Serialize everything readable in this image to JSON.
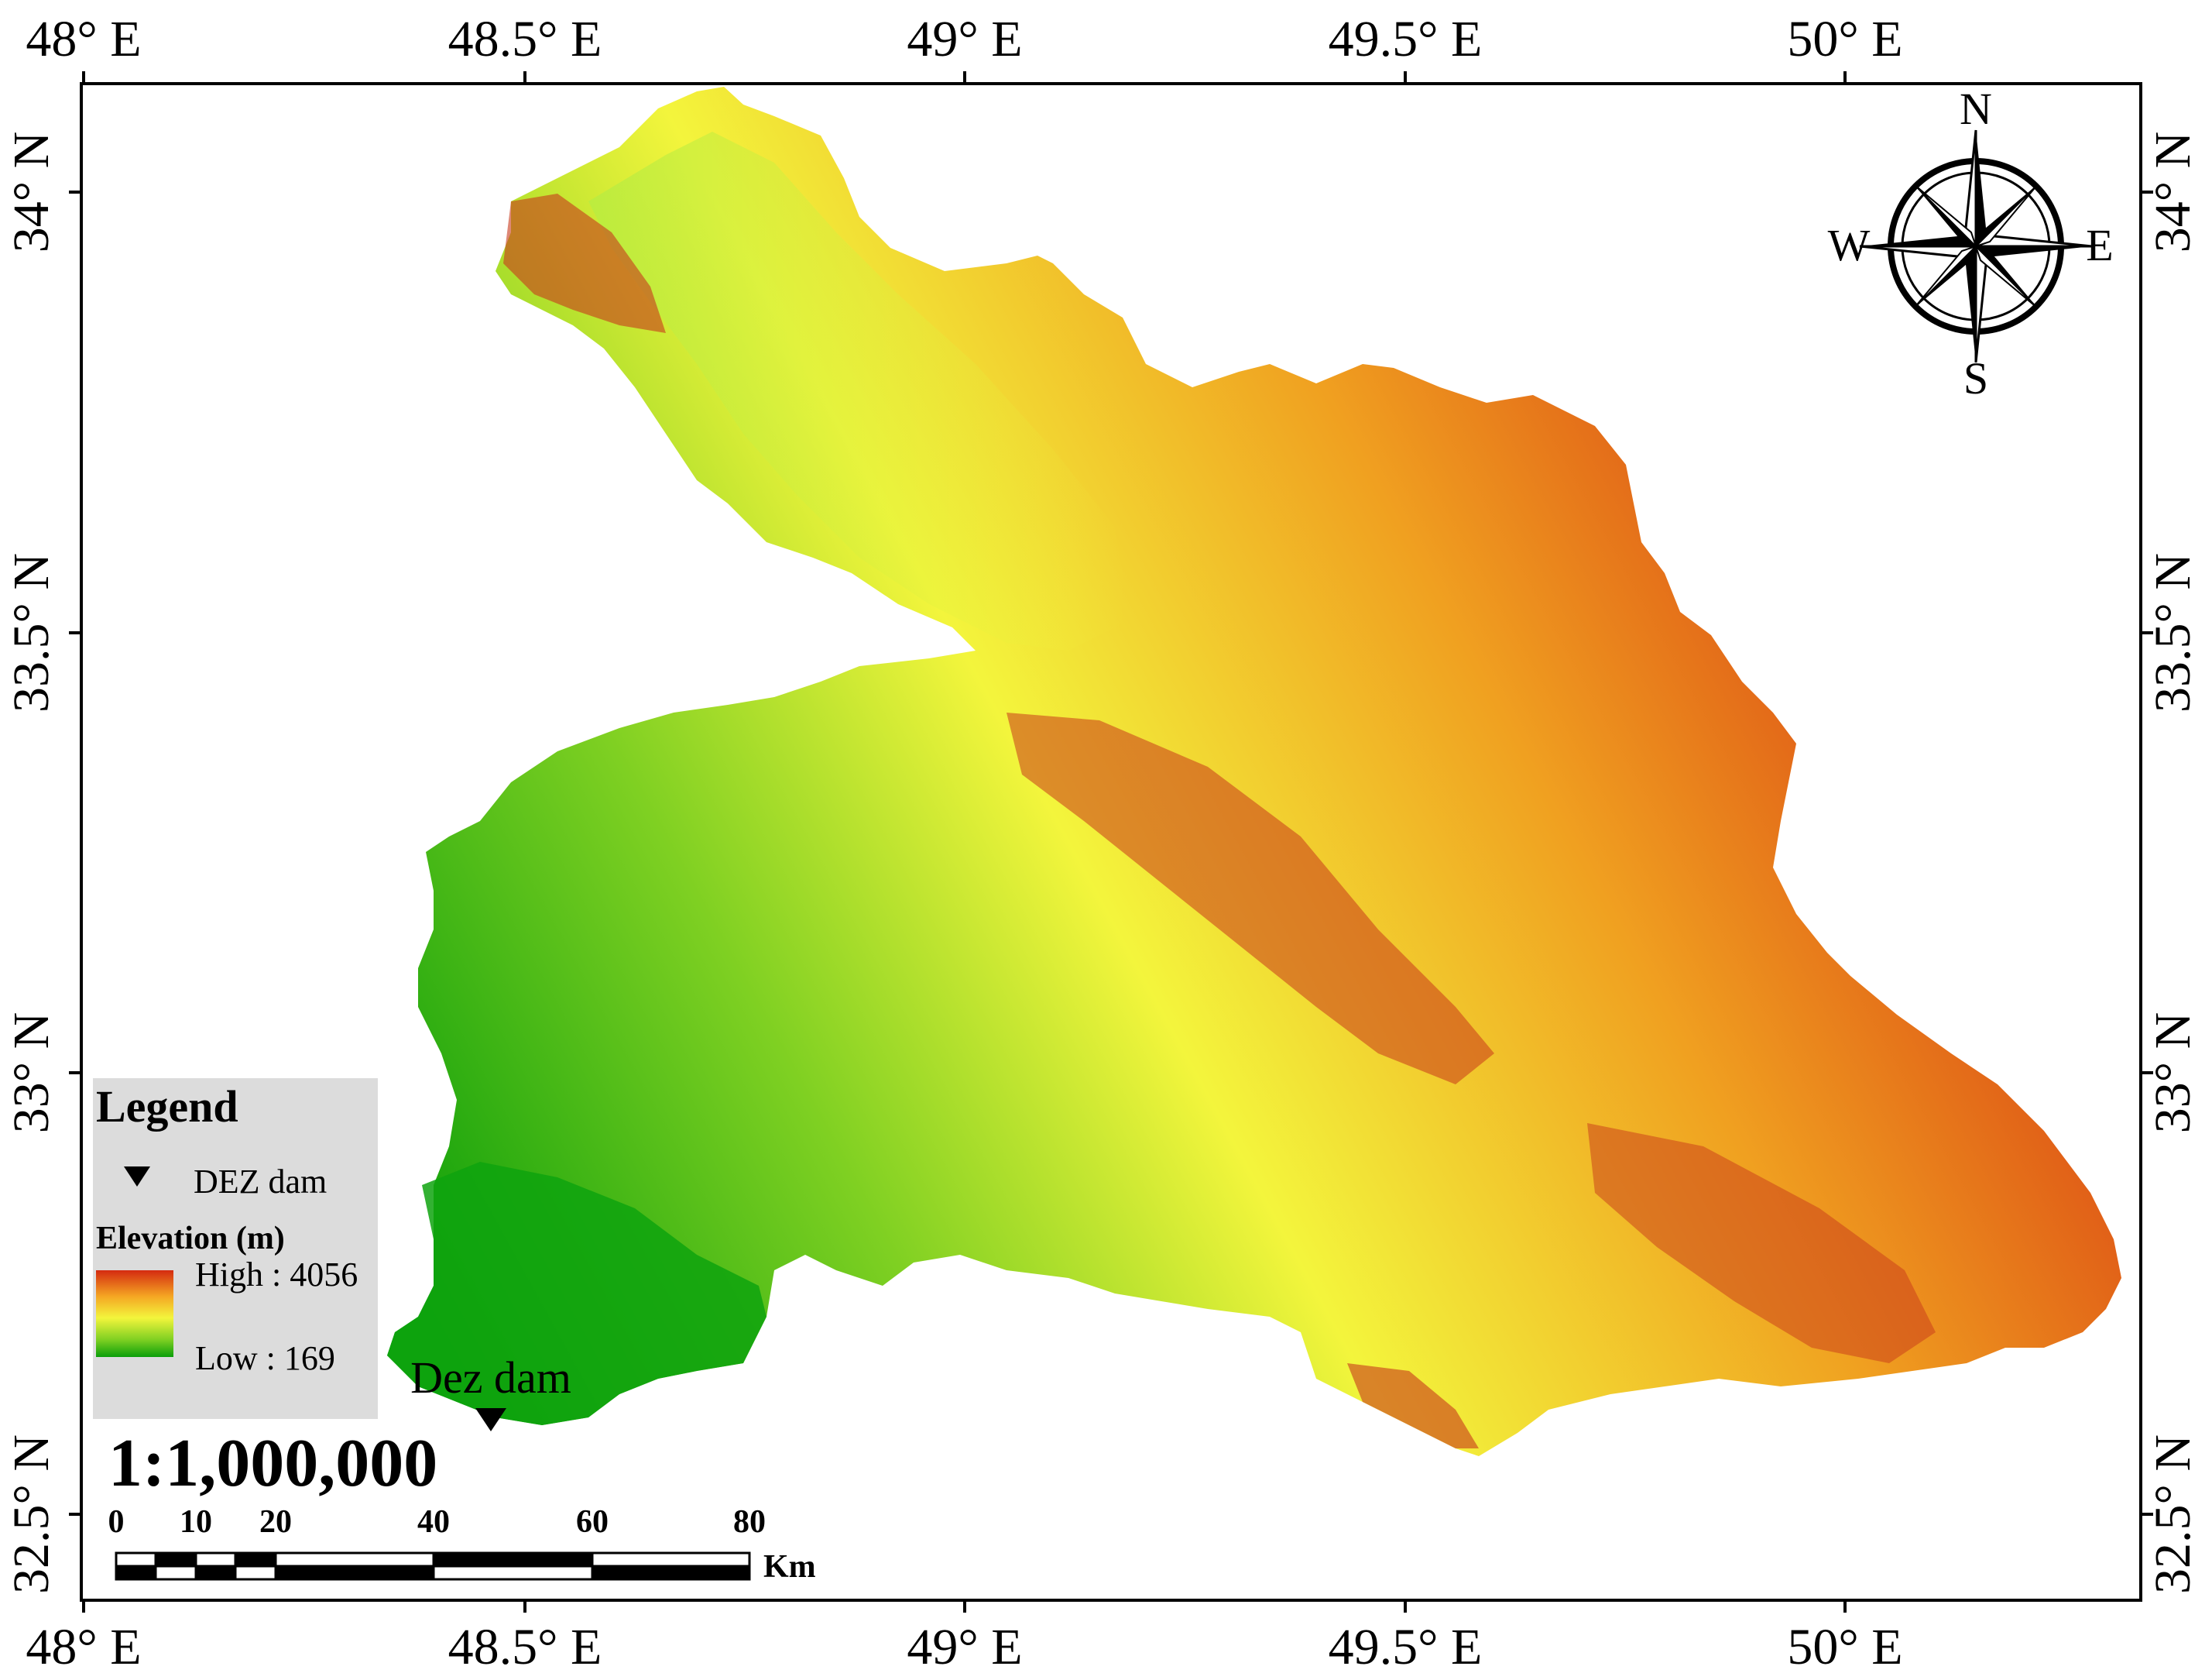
{
  "map": {
    "top_ticks": [
      "48° E",
      "48.5° E",
      "49° E",
      "49.5° E",
      "50° E"
    ],
    "bottom_ticks": [
      "48° E",
      "48.5° E",
      "49° E",
      "49.5° E",
      "50° E"
    ],
    "left_ticks": [
      "34° N",
      "33.5° N",
      "33° N",
      "32.5° N"
    ],
    "right_ticks": [
      "34° N",
      "33.5° N",
      "33° N",
      "32.5° N"
    ],
    "dam_label": "Dez dam",
    "colors": {
      "low": "#00a000",
      "mid_low": "#7ed321",
      "mid": "#f5f542",
      "mid_high": "#f5a623",
      "high": "#d0021b"
    }
  },
  "compass": {
    "north": "N",
    "south": "S",
    "east": "E",
    "west": "W",
    "icon": "compass-rose-icon"
  },
  "legend": {
    "title": "Legend",
    "dam_item": "DEZ dam",
    "elevation_title": "Elevation (m)",
    "high_label": "High : 4056",
    "low_label": "Low : 169"
  },
  "scale": {
    "ratio": "1:1,000,000",
    "ticks": [
      "0",
      "10",
      "20",
      "40",
      "60",
      "80"
    ],
    "unit": "Km"
  }
}
